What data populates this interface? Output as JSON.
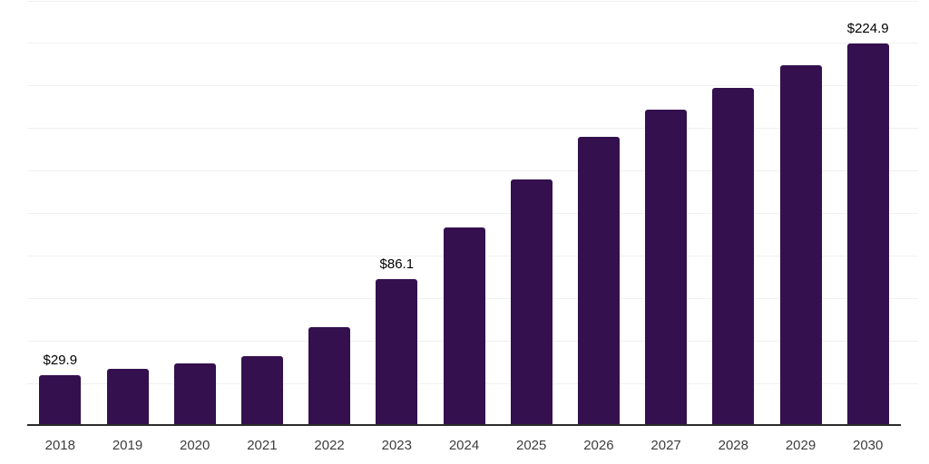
{
  "chart_data": {
    "type": "bar",
    "title": "",
    "xlabel": "",
    "ylabel": "",
    "categories": [
      "2018",
      "2019",
      "2020",
      "2021",
      "2022",
      "2023",
      "2024",
      "2025",
      "2026",
      "2027",
      "2028",
      "2029",
      "2030"
    ],
    "values": [
      29.9,
      33.5,
      37,
      41,
      58,
      86.1,
      117,
      145,
      170,
      186,
      199,
      212,
      224.9
    ],
    "value_labels": [
      {
        "category": "2018",
        "label": "$29.9"
      },
      {
        "category": "2023",
        "label": "$86.1"
      },
      {
        "category": "2030",
        "label": "$224.9"
      }
    ],
    "ylim": [
      0,
      250
    ],
    "grid_step": 25,
    "grid": "horizontal-only",
    "legend": "none",
    "y_axis_ticks_visible": false
  },
  "colors": {
    "bar": "#34104e",
    "axis_line": "#2b2b2b",
    "gridline": "#f0f0f0",
    "value_label": "#000000",
    "tick_label": "#3d3d3d",
    "background": "#ffffff"
  }
}
